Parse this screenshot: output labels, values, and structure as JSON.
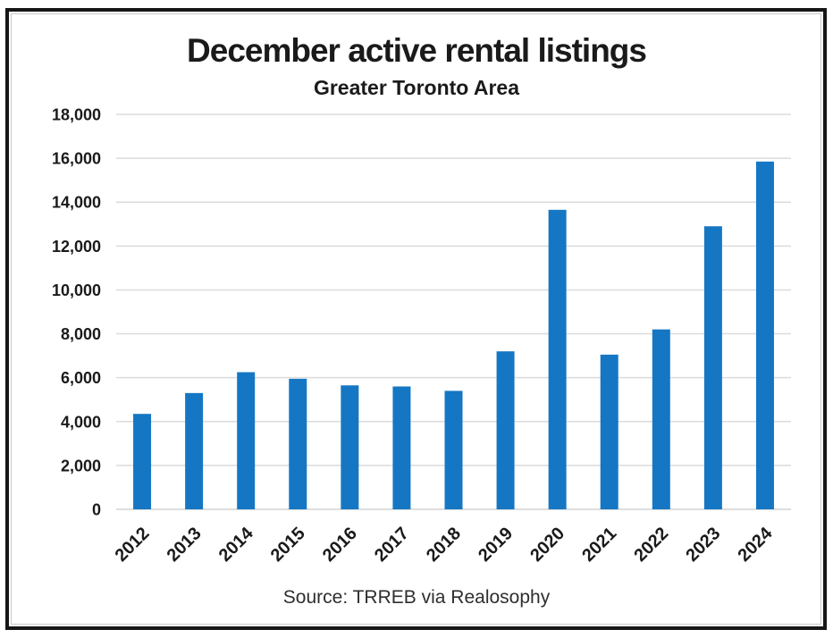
{
  "chart_data": {
    "type": "bar",
    "title": "December active rental listings",
    "subtitle": "Greater Toronto Area",
    "source": "Source: TRREB via Realosophy",
    "categories": [
      "2012",
      "2013",
      "2014",
      "2015",
      "2016",
      "2017",
      "2018",
      "2019",
      "2020",
      "2021",
      "2022",
      "2023",
      "2024"
    ],
    "values": [
      4350,
      5300,
      6250,
      5950,
      5650,
      5600,
      5400,
      7200,
      13650,
      7050,
      8200,
      12900,
      15850
    ],
    "xlabel": "",
    "ylabel": "",
    "ylim": [
      0,
      18000
    ],
    "y_tick_step": 2000,
    "y_tick_labels": [
      "0",
      "2,000",
      "4,000",
      "6,000",
      "8,000",
      "10,000",
      "12,000",
      "14,000",
      "16,000",
      "18,000"
    ],
    "grid": true,
    "legend": "none",
    "x_label_rotation": -45,
    "bar_color": "#1577C4",
    "gridline_color": "#DBDBDB",
    "axis_line_color": "#D4D4D4",
    "text_color": "#1a1a1a",
    "frame_border_color": "#161616",
    "inner_frame_color": "#c9c9c9"
  }
}
